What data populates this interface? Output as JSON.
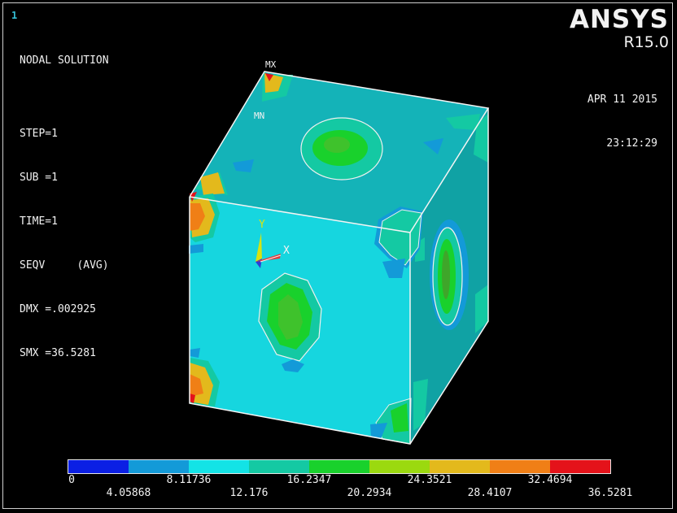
{
  "window": {
    "number": "1"
  },
  "info": {
    "lines": [
      "NODAL SOLUTION",
      "",
      "STEP=1",
      "SUB =1",
      "TIME=1",
      "SEQV     (AVG)",
      "DMX =.002925",
      "SMX =36.5281"
    ]
  },
  "brand": {
    "name": "ANSYS",
    "version": "R15.0"
  },
  "timestamp": {
    "date": "APR 11 2015",
    "time": "23:12:29"
  },
  "model": {
    "max_label": "MX",
    "min_label": "MN",
    "axis_y": "Y",
    "axis_x": "X"
  },
  "legend": {
    "colors": [
      "#0b1fe4",
      "#139ad8",
      "#13e3e6",
      "#14c9a3",
      "#19d12c",
      "#9bd90f",
      "#e3b91c",
      "#f07f16",
      "#e4121a"
    ],
    "labels_top": [
      "0",
      "8.11736",
      "16.2347",
      "24.3521",
      "32.4694"
    ],
    "labels_bottom": [
      "4.05868",
      "12.176",
      "20.2934",
      "28.4107",
      "36.5281"
    ]
  }
}
